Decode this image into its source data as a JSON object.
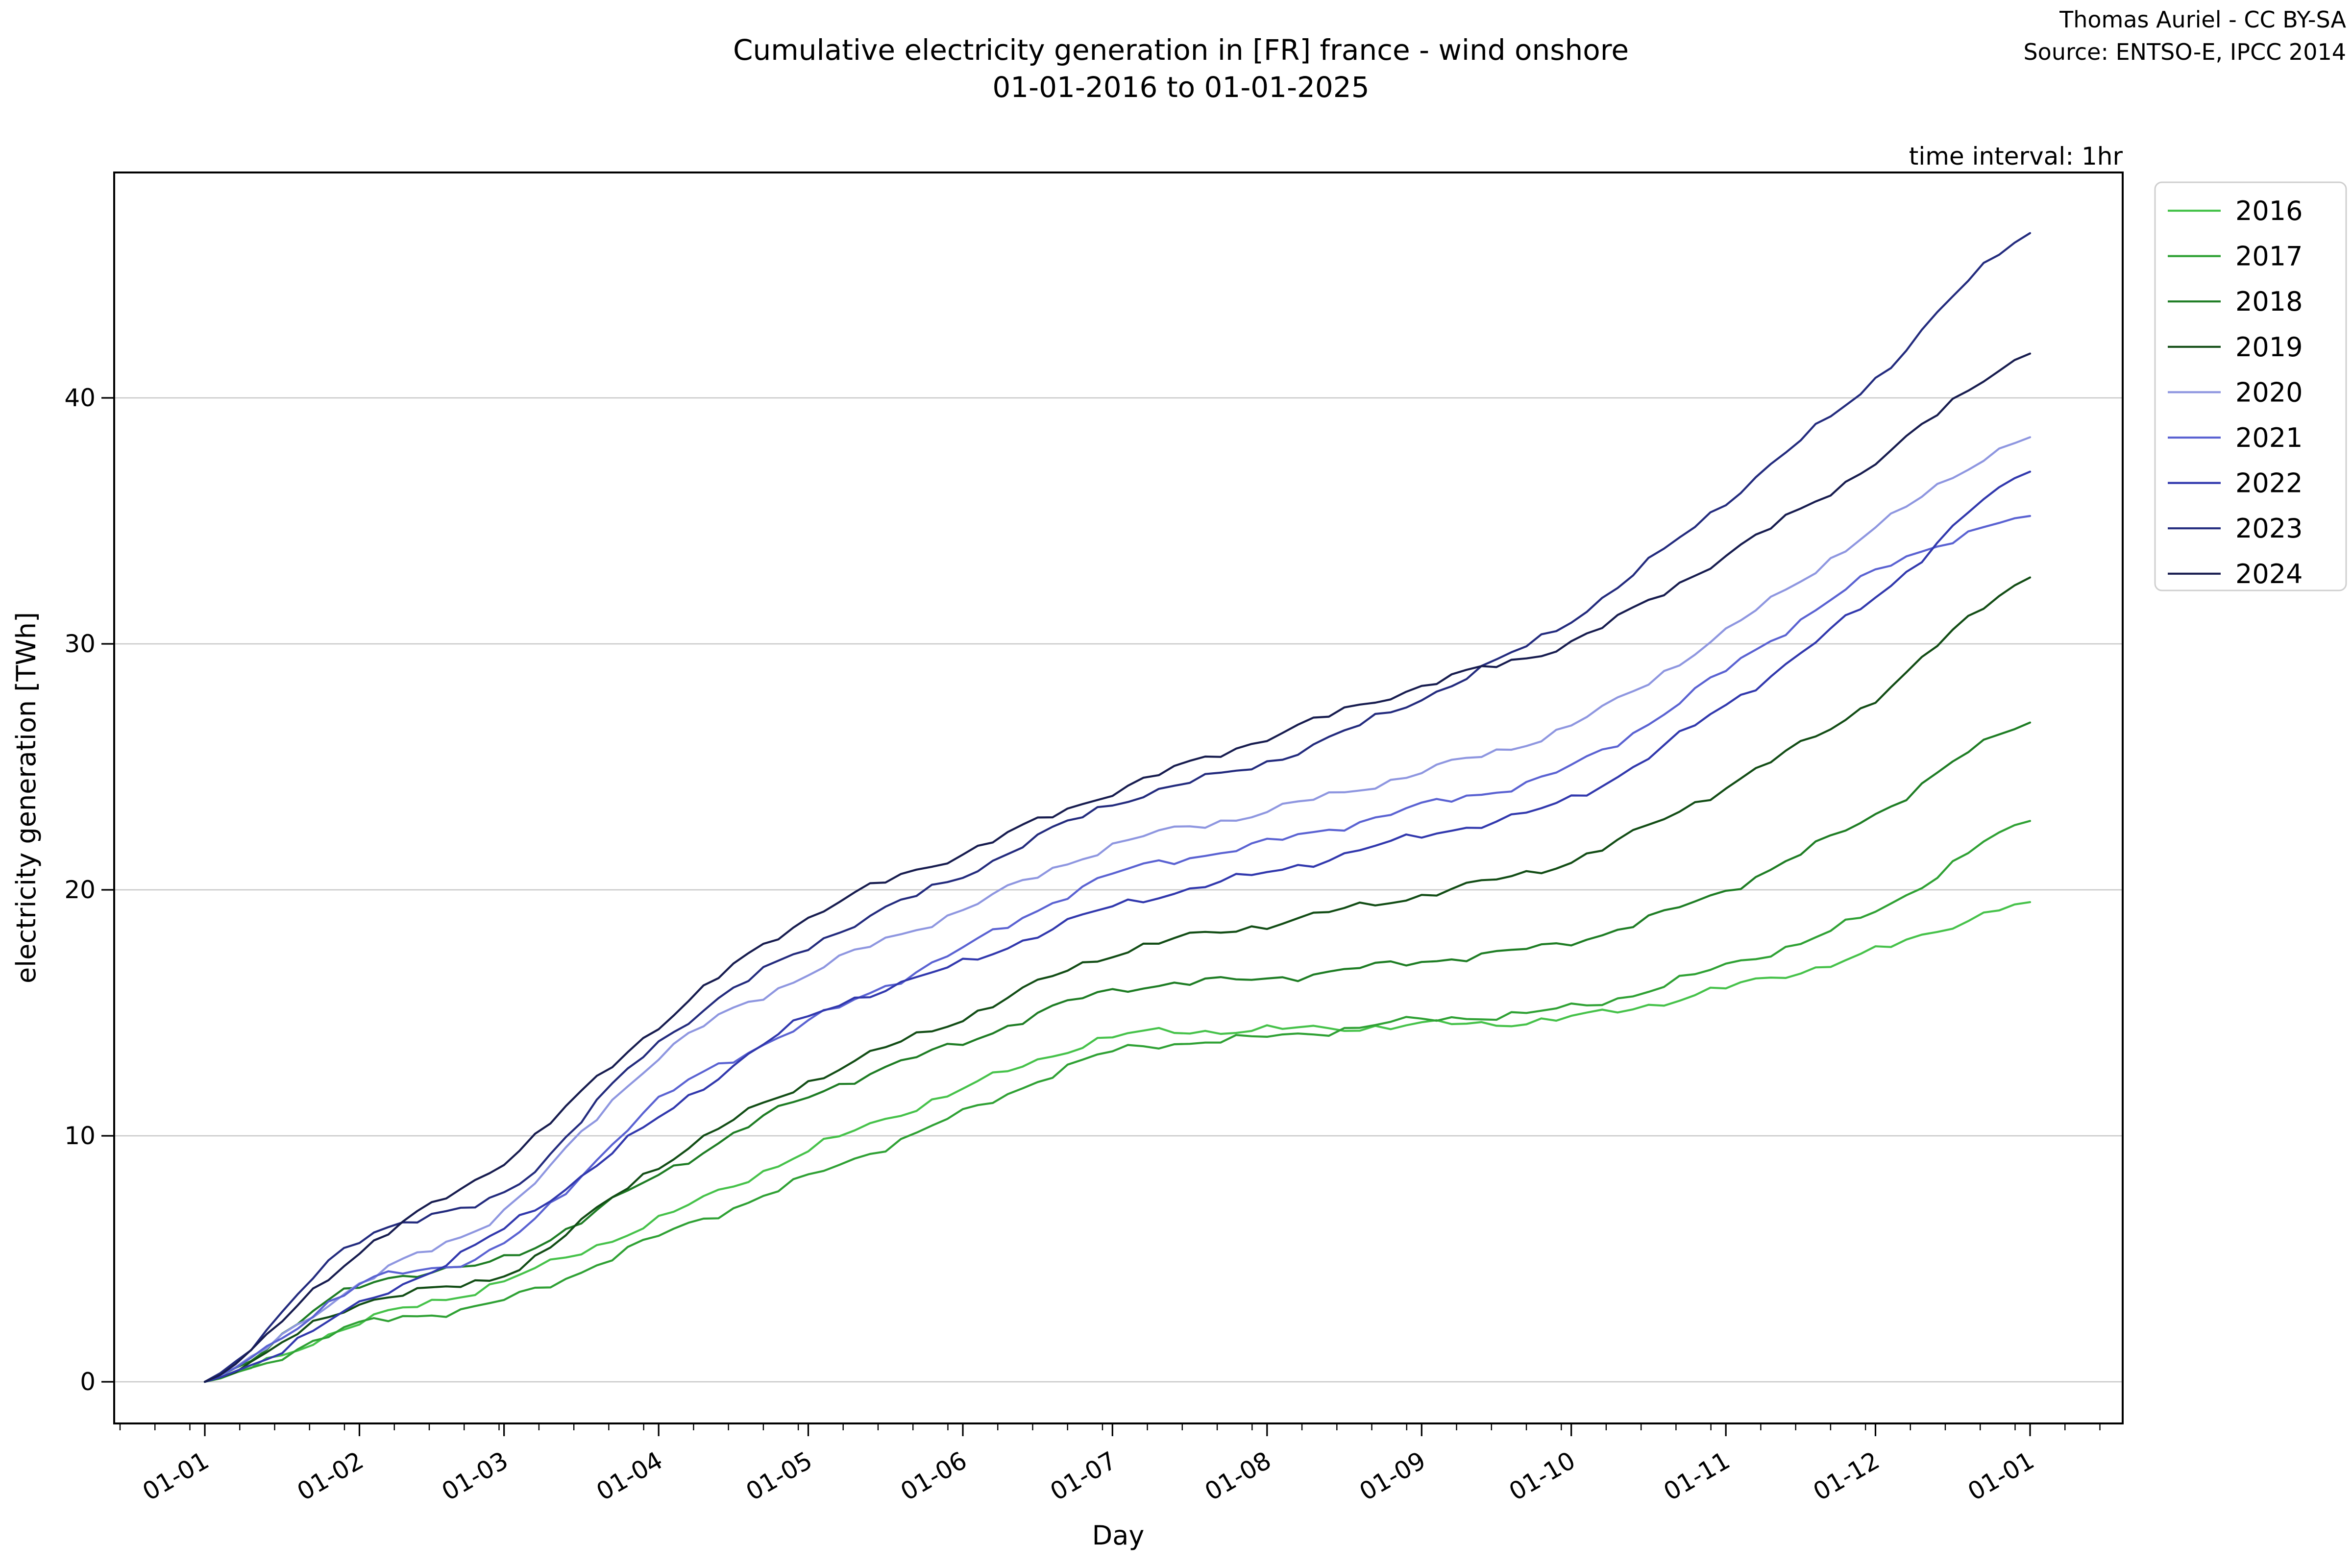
{
  "figure": {
    "title_line1": "Cumulative electricity generation in [FR] france - wind onshore",
    "title_line2": "01-01-2016 to 01-01-2025",
    "attribution_line1": "Thomas Auriel - CC BY-SA",
    "attribution_line2": "Source: ENTSO-E, IPCC 2014",
    "note": "time interval: 1hr"
  },
  "chart_data": {
    "type": "line",
    "title": "Cumulative electricity generation in [FR] france - wind onshore 01-01-2016 to 01-01-2025",
    "xlabel": "Day",
    "ylabel": "electricity generation [TWh]",
    "x_tick_labels": [
      "01-01",
      "01-02",
      "01-03",
      "01-04",
      "01-05",
      "01-06",
      "01-07",
      "01-08",
      "01-09",
      "01-10",
      "01-11",
      "01-12",
      "01-01"
    ],
    "month_days": [
      0,
      31,
      60,
      91,
      121,
      152,
      182,
      213,
      244,
      274,
      305,
      335,
      366
    ],
    "y_ticks": [
      0,
      10,
      20,
      30,
      40
    ],
    "ylim": [
      -1.7,
      49.2
    ],
    "xlim_days": [
      -18,
      384
    ],
    "grid": "horizontal major gridlines, light gray",
    "legend_position": "outside upper right",
    "grid_color": "#c9c9c9",
    "spine_color": "#000000",
    "note": "time interval: 1hr",
    "series": [
      {
        "name": "2016",
        "color": "#46c24a",
        "monthly_cumulative_TWh": [
          0,
          2.4,
          4.1,
          6.6,
          9.4,
          11.9,
          14.0,
          14.3,
          14.5,
          14.8,
          16.0,
          17.5,
          19.5
        ]
      },
      {
        "name": "2017",
        "color": "#2fa134",
        "monthly_cumulative_TWh": [
          0,
          2.3,
          3.3,
          5.9,
          8.3,
          10.9,
          13.4,
          14.0,
          14.7,
          15.2,
          16.9,
          19.1,
          22.8
        ]
      },
      {
        "name": "2018",
        "color": "#1e7d24",
        "monthly_cumulative_TWh": [
          0,
          3.9,
          5.0,
          8.4,
          11.6,
          13.8,
          15.9,
          16.4,
          17.1,
          17.9,
          20.0,
          23.1,
          26.8
        ]
      },
      {
        "name": "2019",
        "color": "#124d15",
        "monthly_cumulative_TWh": [
          0,
          3.2,
          4.4,
          8.8,
          12.2,
          14.8,
          17.4,
          18.6,
          19.8,
          21.2,
          24.2,
          27.8,
          32.7
        ]
      },
      {
        "name": "2020",
        "color": "#8e96e0",
        "monthly_cumulative_TWh": [
          0,
          4.0,
          7.0,
          13.2,
          16.6,
          19.2,
          21.8,
          23.2,
          24.8,
          26.7,
          30.5,
          34.7,
          38.4
        ]
      },
      {
        "name": "2021",
        "color": "#5a62d2",
        "monthly_cumulative_TWh": [
          0,
          3.9,
          5.6,
          11.4,
          14.6,
          17.6,
          20.6,
          21.9,
          23.4,
          25.0,
          28.9,
          32.9,
          35.2
        ]
      },
      {
        "name": "2022",
        "color": "#3138ad",
        "monthly_cumulative_TWh": [
          0,
          3.1,
          6.2,
          10.7,
          14.8,
          17.0,
          19.3,
          20.7,
          22.2,
          23.7,
          27.5,
          31.9,
          37.0
        ]
      },
      {
        "name": "2023",
        "color": "#232b7e",
        "monthly_cumulative_TWh": [
          0,
          5.8,
          7.7,
          13.8,
          17.7,
          20.6,
          23.5,
          25.2,
          27.8,
          31.0,
          35.8,
          40.8,
          46.7
        ]
      },
      {
        "name": "2024",
        "color": "#171c4f",
        "monthly_cumulative_TWh": [
          0,
          5.3,
          9.0,
          14.5,
          18.9,
          21.5,
          24.0,
          26.2,
          28.3,
          30.1,
          33.6,
          37.4,
          41.8
        ]
      }
    ]
  }
}
